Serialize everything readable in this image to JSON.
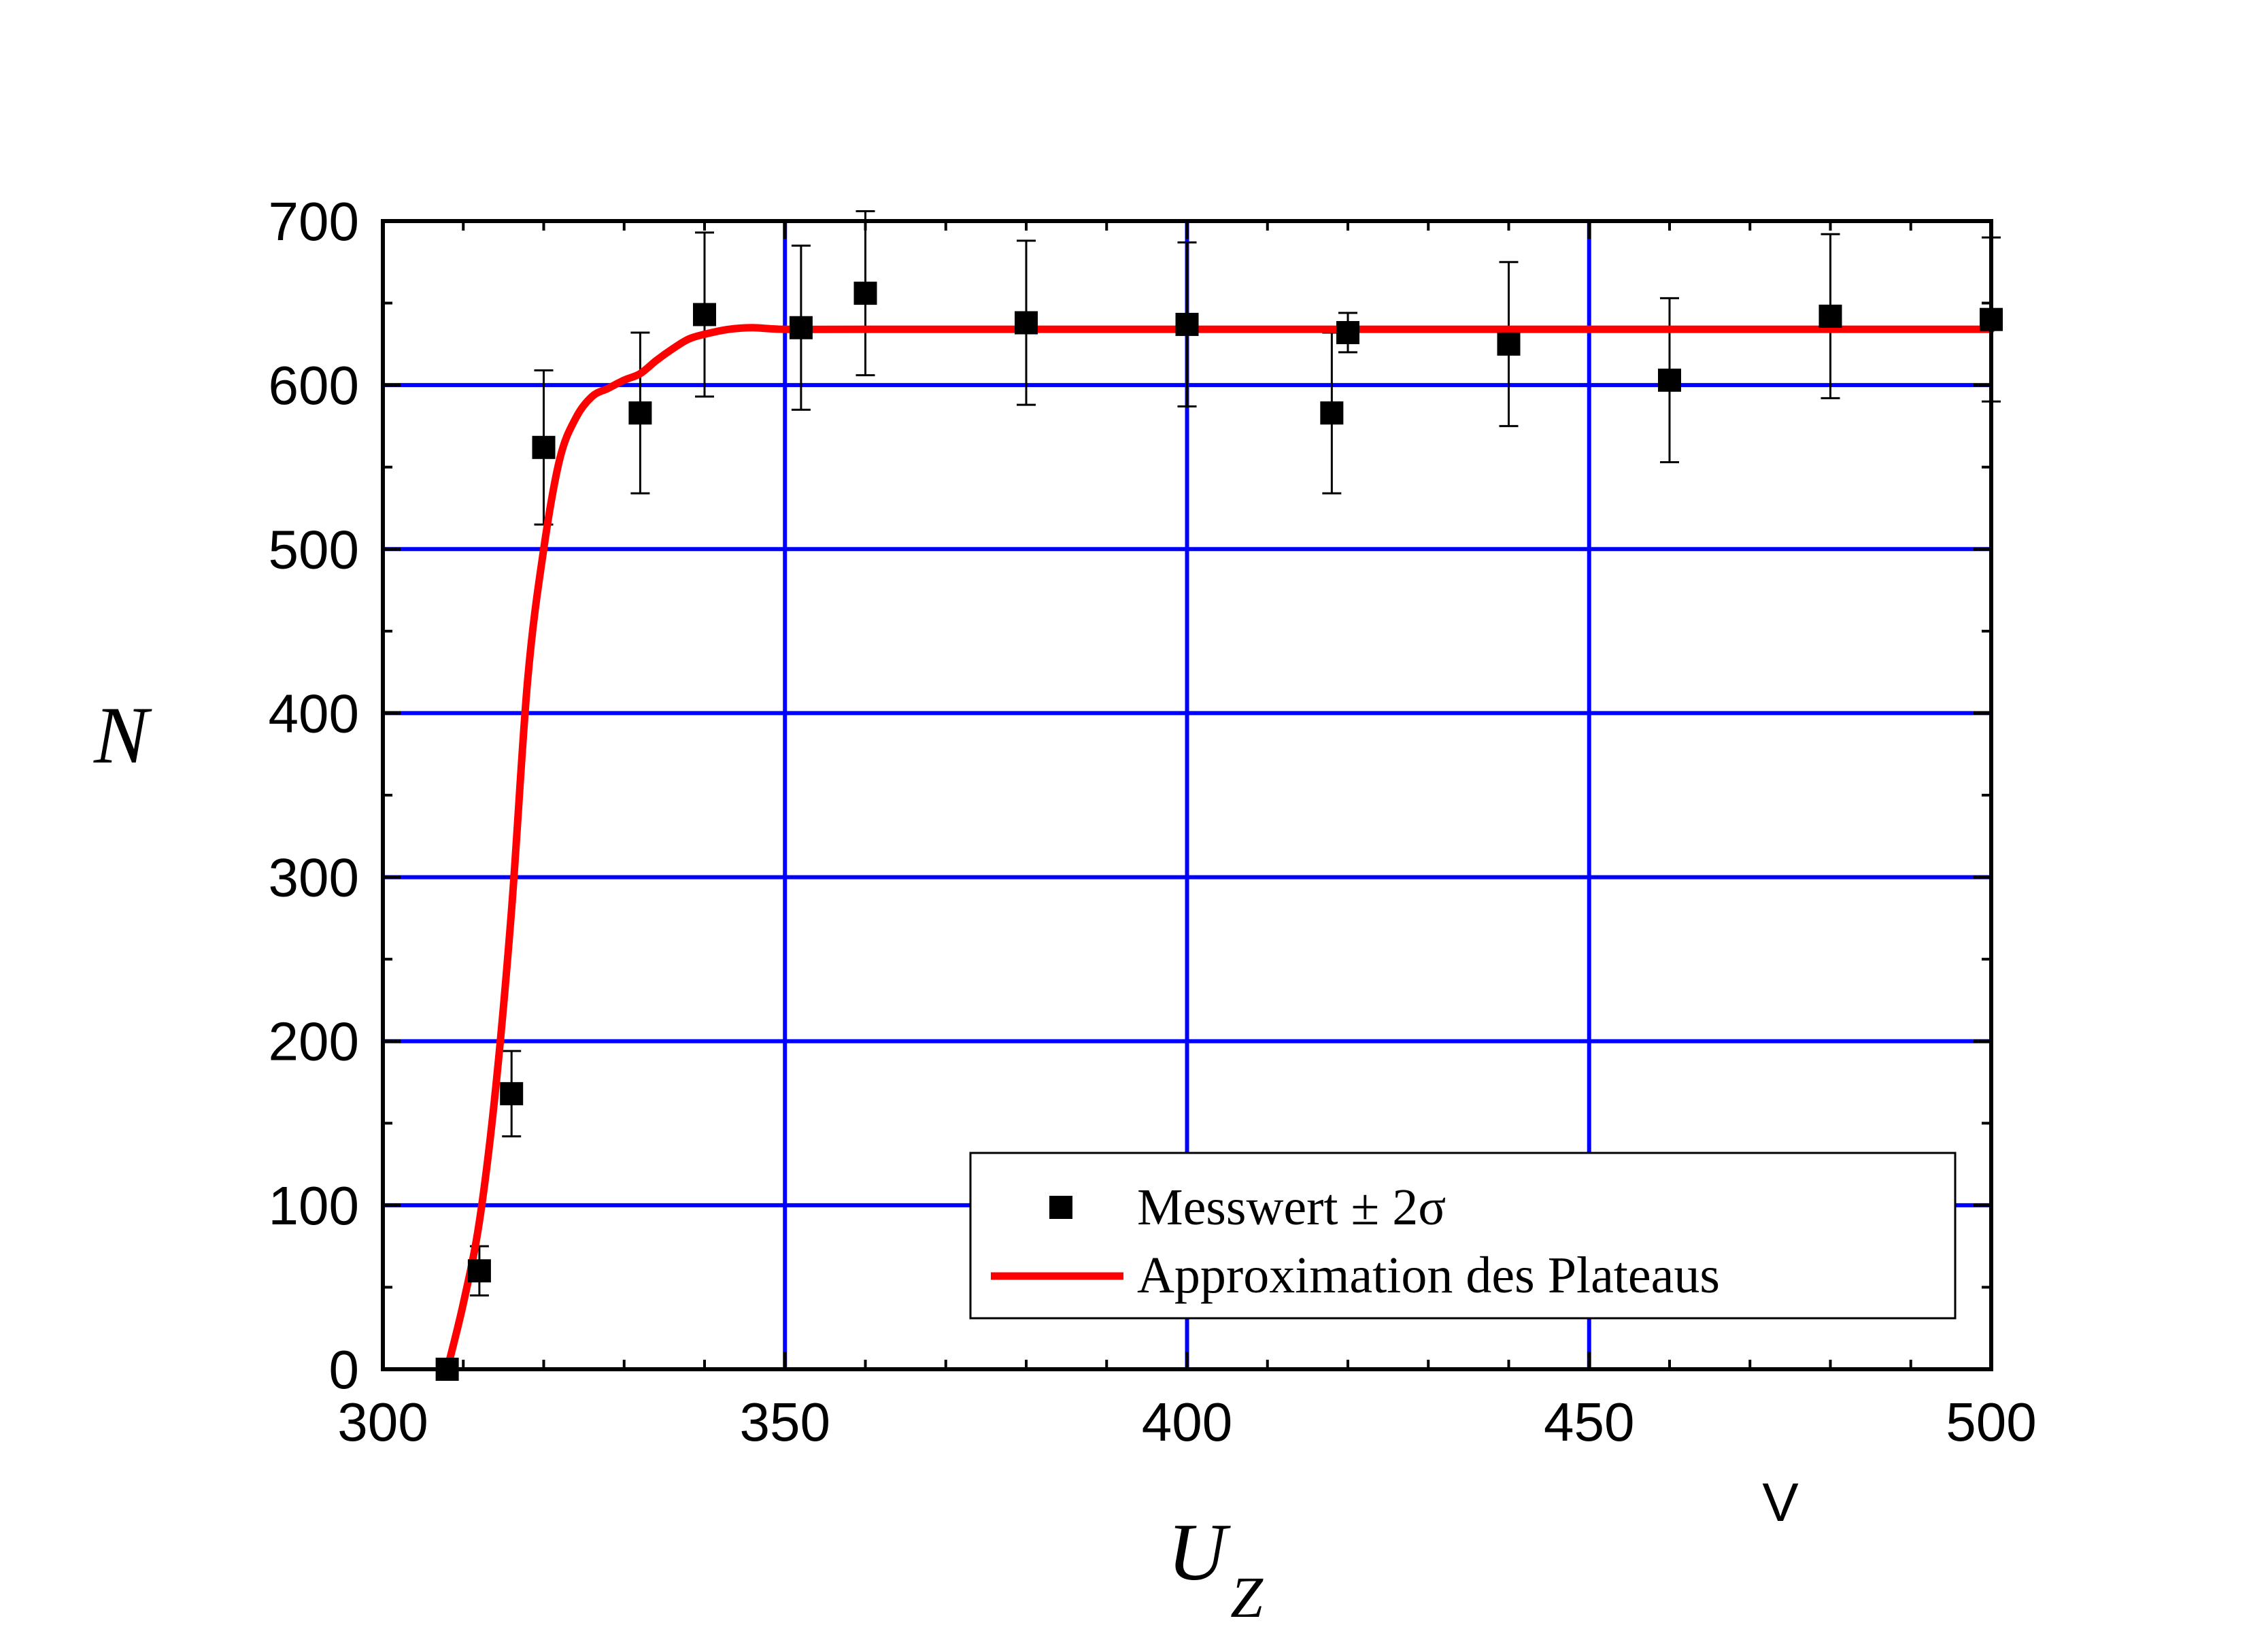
{
  "chart_data": {
    "type": "scatter",
    "xlim": [
      300,
      500
    ],
    "ylim": [
      0,
      700
    ],
    "x_ticks": [
      300,
      350,
      400,
      450,
      500
    ],
    "y_ticks": [
      0,
      100,
      200,
      300,
      400,
      500,
      600,
      700
    ],
    "x_minor_step": 10,
    "y_minor_step": 50,
    "xlabel": "U",
    "xlabel_subscript": "Z",
    "x_unit": "V",
    "ylabel": "N",
    "grid": true,
    "grid_x": [
      350,
      400,
      450
    ],
    "grid_y": [
      100,
      200,
      300,
      400,
      500,
      600
    ],
    "legend_position": "bottom-right",
    "colors": {
      "grid": "#0000FF",
      "fit": "#FF0000",
      "points": "#000000"
    },
    "series": [
      {
        "name": "Messwert ± 2σ",
        "kind": "points_with_error_bars",
        "points": [
          {
            "x": 308,
            "y": 0,
            "err": 0
          },
          {
            "x": 312,
            "y": 60,
            "err": 15
          },
          {
            "x": 316,
            "y": 168,
            "err": 26
          },
          {
            "x": 320,
            "y": 562,
            "err": 47
          },
          {
            "x": 332,
            "y": 583,
            "err": 49
          },
          {
            "x": 340,
            "y": 643,
            "err": 50
          },
          {
            "x": 352,
            "y": 635,
            "err": 50
          },
          {
            "x": 360,
            "y": 656,
            "err": 50
          },
          {
            "x": 380,
            "y": 638,
            "err": 50
          },
          {
            "x": 400,
            "y": 637,
            "err": 50
          },
          {
            "x": 418,
            "y": 583,
            "err": 49
          },
          {
            "x": 420,
            "y": 632,
            "err": 12
          },
          {
            "x": 440,
            "y": 625,
            "err": 50
          },
          {
            "x": 460,
            "y": 603,
            "err": 50
          },
          {
            "x": 480,
            "y": 642,
            "err": 50
          },
          {
            "x": 500,
            "y": 640,
            "err": 50
          }
        ]
      },
      {
        "name": "Approximation des Plateaus",
        "kind": "line",
        "points": [
          [
            308,
            0
          ],
          [
            310,
            40
          ],
          [
            312,
            90
          ],
          [
            314,
            170
          ],
          [
            316,
            280
          ],
          [
            318,
            420
          ],
          [
            320,
            500
          ],
          [
            322,
            555
          ],
          [
            324,
            580
          ],
          [
            326,
            593
          ],
          [
            328,
            598
          ],
          [
            330,
            603
          ],
          [
            332,
            607
          ],
          [
            334,
            615
          ],
          [
            336,
            622
          ],
          [
            338,
            628
          ],
          [
            340,
            631
          ],
          [
            343,
            634
          ],
          [
            346,
            635
          ],
          [
            350,
            634
          ],
          [
            360,
            634
          ],
          [
            400,
            634
          ],
          [
            450,
            634
          ],
          [
            500,
            634
          ]
        ]
      }
    ]
  }
}
